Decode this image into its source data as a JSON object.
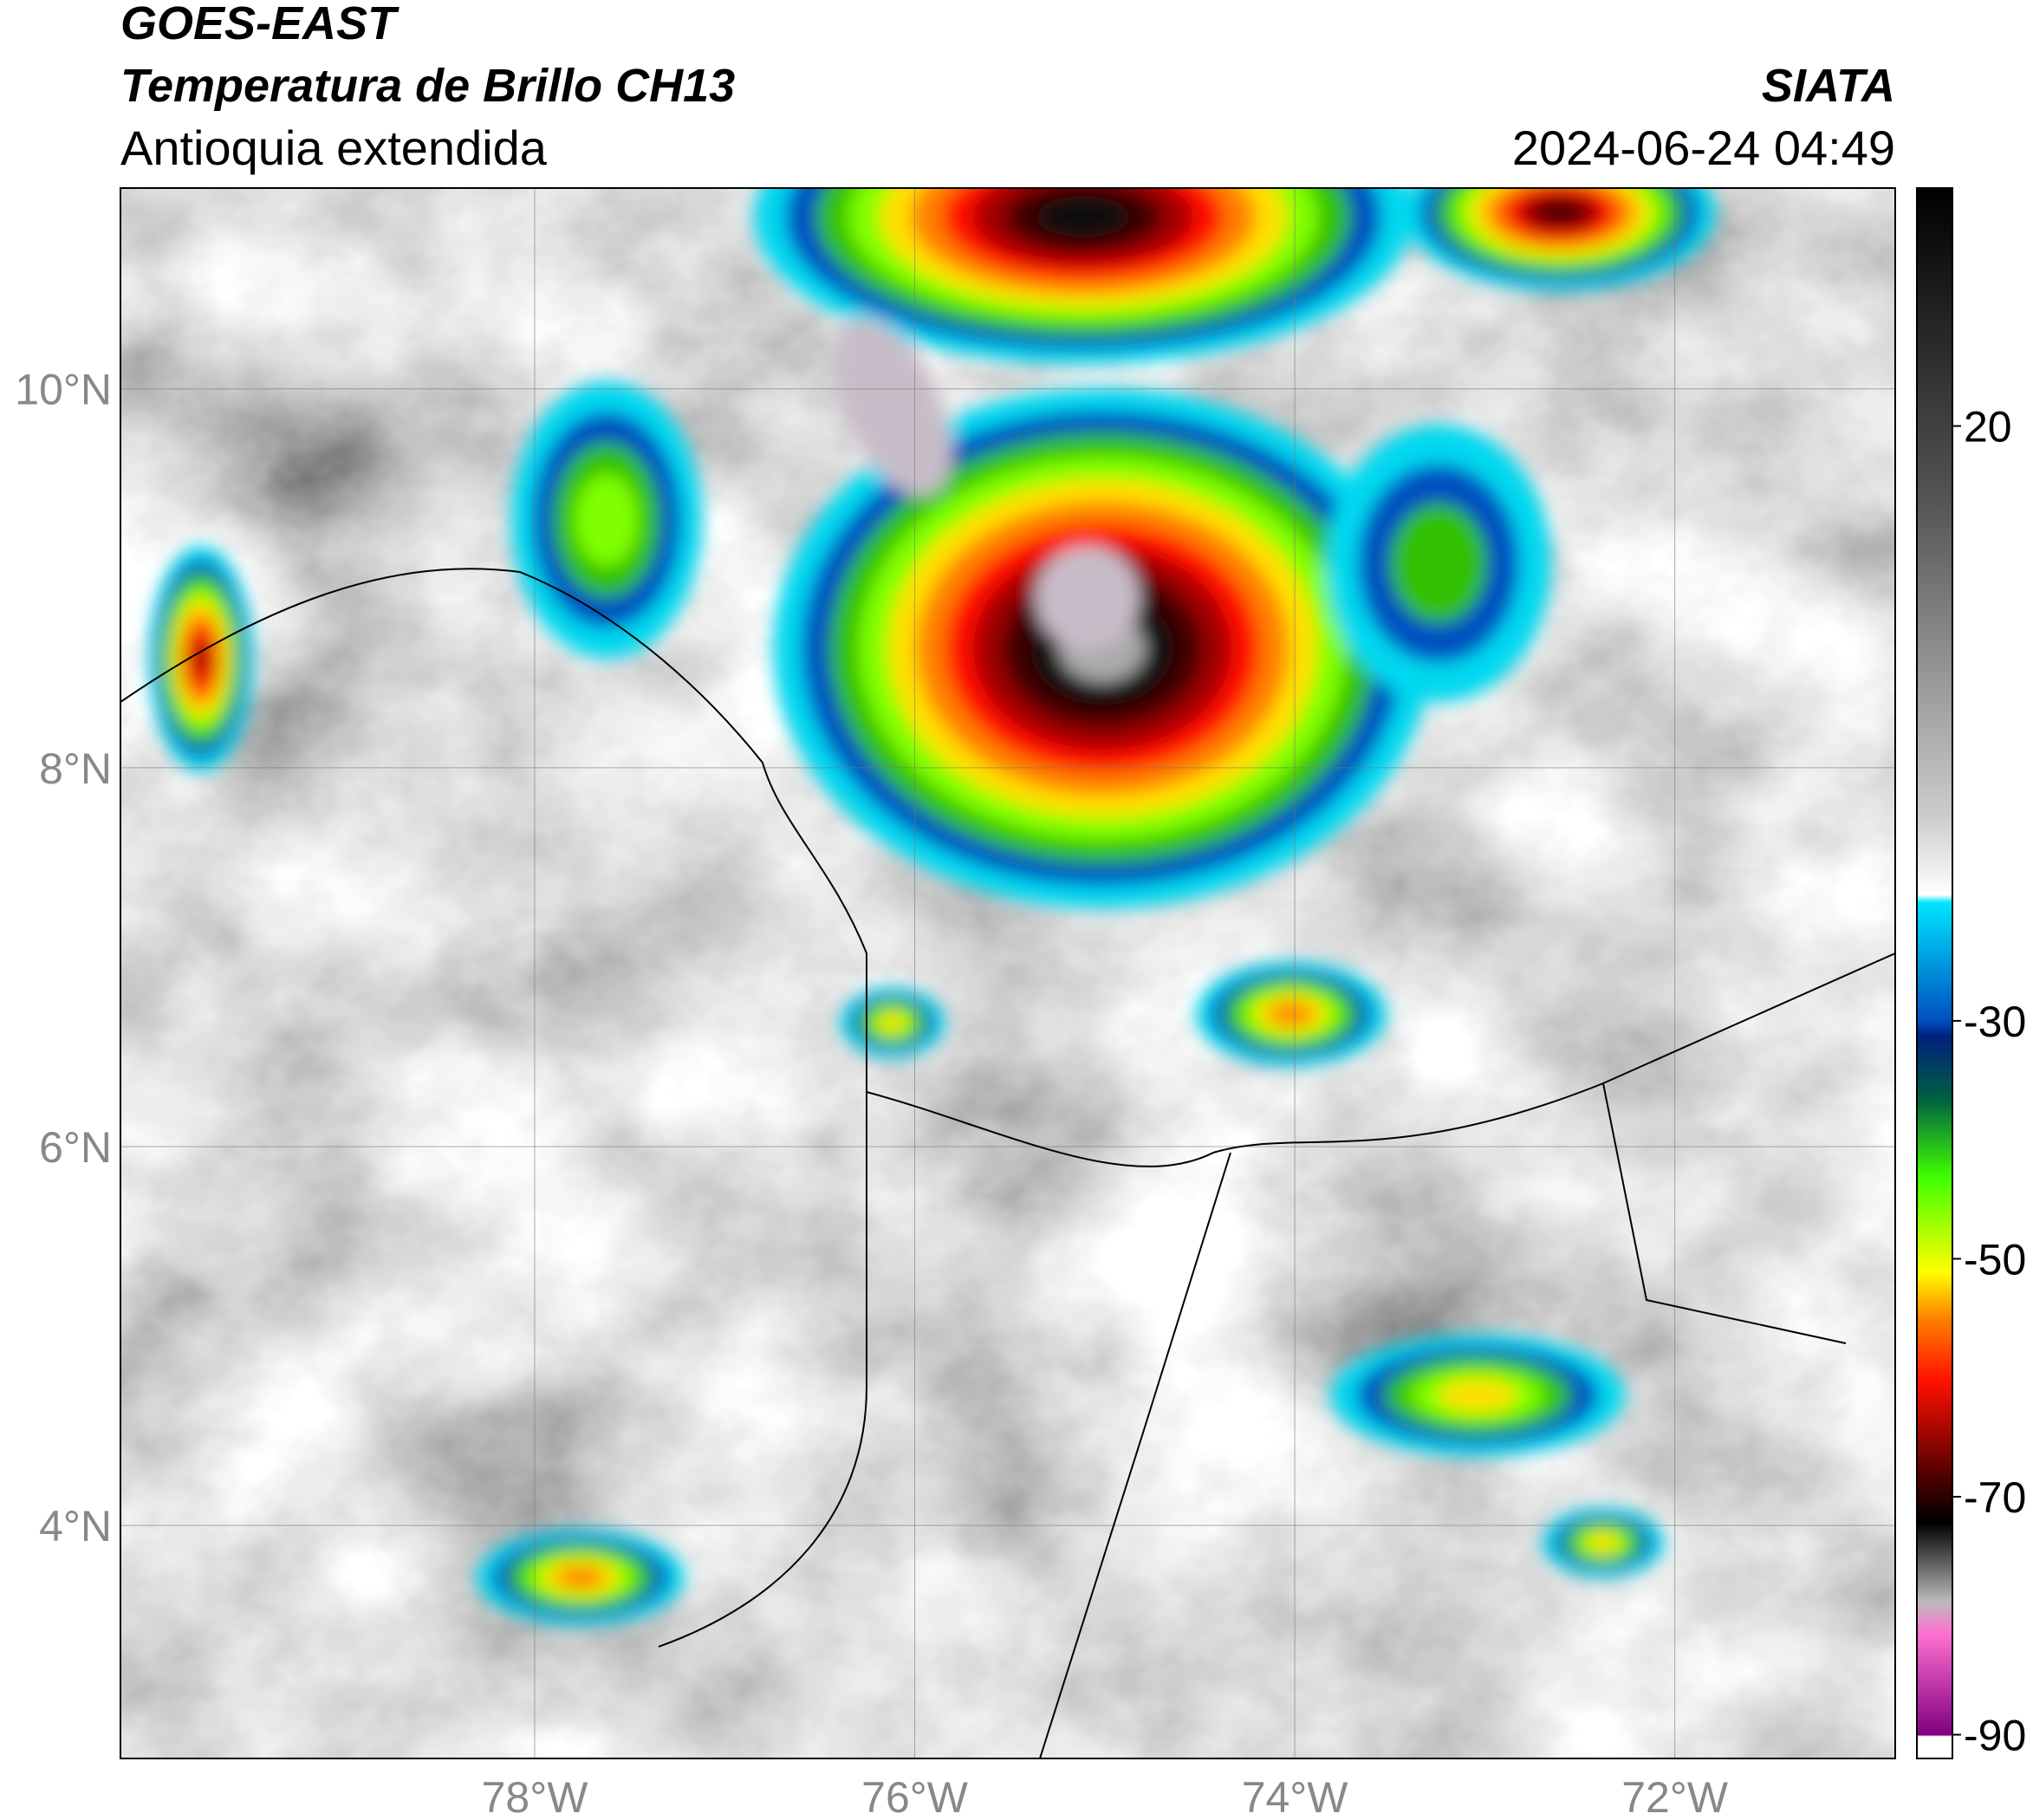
{
  "header": {
    "title_line1": "GOES-EAST",
    "title_line2": "Temperatura de Brillo CH13",
    "subtitle": "Antioquia extendida",
    "source": "SIATA",
    "datetime": "2024-06-24 04:49"
  },
  "map": {
    "lon_range": [
      -80.18,
      -70.84
    ],
    "lat_range": [
      2.77,
      11.06
    ],
    "lat_ticks": [
      {
        "value": 10,
        "label": "10°N"
      },
      {
        "value": 8,
        "label": "8°N"
      },
      {
        "value": 6,
        "label": "6°N"
      },
      {
        "value": 4,
        "label": "4°N"
      }
    ],
    "lon_ticks": [
      {
        "value": -78,
        "label": "78°W"
      },
      {
        "value": -76,
        "label": "76°W"
      },
      {
        "value": -74,
        "label": "74°W"
      },
      {
        "value": -72,
        "label": "72°W"
      }
    ],
    "colorbar": {
      "range": [
        -92,
        40
      ],
      "ticks": [
        20,
        -30,
        -50,
        -70,
        -90
      ]
    }
  }
}
